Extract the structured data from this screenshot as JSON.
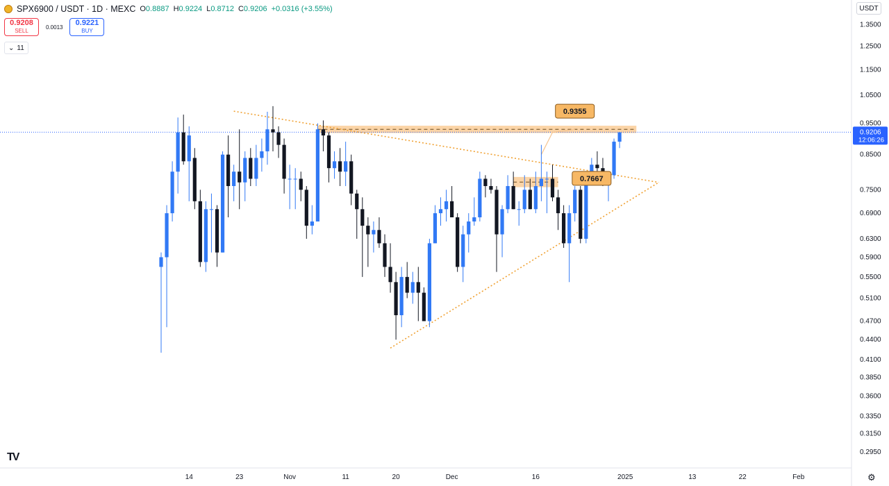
{
  "header": {
    "symbol": "SPX6900 / USDT · 1D · MEXC",
    "o_key": "O",
    "o_val": "0.8887",
    "h_key": "H",
    "h_val": "0.9224",
    "l_key": "L",
    "l_val": "0.8712",
    "c_key": "C",
    "c_val": "0.9206",
    "change": "+0.0316 (+3.55%)"
  },
  "trade": {
    "sell_price": "0.9208",
    "sell_label": "SELL",
    "spread": "0.0013",
    "buy_price": "0.9221",
    "buy_label": "BUY"
  },
  "indicators_toggle": {
    "count": "11",
    "chevron_icon": "chevron-down-icon"
  },
  "currency": "USDT",
  "settings_icon": "gear-icon",
  "logo_text": "TV",
  "colors": {
    "up": "#3179f5",
    "down": "#131722",
    "zone": "#f9c58a",
    "trend": "#f0a030",
    "price_line": "#2962ff"
  },
  "chart_data": {
    "type": "candlestick",
    "scale": "log",
    "ylim": [
      0.285,
      1.375
    ],
    "yticks": [
      "1.3500",
      "1.2500",
      "1.1500",
      "1.0500",
      "0.9500",
      "0.8500",
      "0.7500",
      "0.6900",
      "0.6300",
      "0.5900",
      "0.5500",
      "0.5100",
      "0.4700",
      "0.4400",
      "0.4100",
      "0.3850",
      "0.3600",
      "0.3350",
      "0.3150",
      "0.2950"
    ],
    "xticks": [
      {
        "label": "14",
        "index": 5
      },
      {
        "label": "23",
        "index": 14
      },
      {
        "label": "Nov",
        "index": 23
      },
      {
        "label": "11",
        "index": 33
      },
      {
        "label": "20",
        "index": 42
      },
      {
        "label": "Dec",
        "index": 52
      },
      {
        "label": "16",
        "index": 67
      },
      {
        "label": "2025",
        "index": 83
      },
      {
        "label": "13",
        "index": 95
      },
      {
        "label": "22",
        "index": 104
      },
      {
        "label": "Feb",
        "index": 114
      }
    ],
    "candles": [
      {
        "o": 0.57,
        "h": 0.6,
        "l": 0.42,
        "c": 0.59
      },
      {
        "o": 0.59,
        "h": 0.71,
        "l": 0.46,
        "c": 0.69
      },
      {
        "o": 0.69,
        "h": 0.83,
        "l": 0.67,
        "c": 0.8
      },
      {
        "o": 0.8,
        "h": 0.97,
        "l": 0.74,
        "c": 0.92
      },
      {
        "o": 0.92,
        "h": 0.98,
        "l": 0.82,
        "c": 0.83
      },
      {
        "o": 0.83,
        "h": 0.94,
        "l": 0.72,
        "c": 0.91
      },
      {
        "o": 0.84,
        "h": 0.87,
        "l": 0.7,
        "c": 0.72
      },
      {
        "o": 0.72,
        "h": 0.75,
        "l": 0.57,
        "c": 0.58
      },
      {
        "o": 0.58,
        "h": 0.72,
        "l": 0.56,
        "c": 0.7
      },
      {
        "o": 0.7,
        "h": 0.74,
        "l": 0.6,
        "c": 0.7
      },
      {
        "o": 0.7,
        "h": 0.71,
        "l": 0.57,
        "c": 0.6
      },
      {
        "o": 0.6,
        "h": 0.86,
        "l": 0.6,
        "c": 0.85
      },
      {
        "o": 0.85,
        "h": 0.91,
        "l": 0.68,
        "c": 0.76
      },
      {
        "o": 0.76,
        "h": 0.82,
        "l": 0.72,
        "c": 0.8
      },
      {
        "o": 0.8,
        "h": 0.93,
        "l": 0.7,
        "c": 0.77
      },
      {
        "o": 0.77,
        "h": 0.86,
        "l": 0.72,
        "c": 0.84
      },
      {
        "o": 0.84,
        "h": 0.87,
        "l": 0.76,
        "c": 0.78
      },
      {
        "o": 0.78,
        "h": 0.88,
        "l": 0.76,
        "c": 0.84
      },
      {
        "o": 0.84,
        "h": 0.9,
        "l": 0.8,
        "c": 0.86
      },
      {
        "o": 0.86,
        "h": 0.99,
        "l": 0.82,
        "c": 0.93
      },
      {
        "o": 0.93,
        "h": 1.01,
        "l": 0.86,
        "c": 0.92
      },
      {
        "o": 0.92,
        "h": 0.94,
        "l": 0.84,
        "c": 0.88
      },
      {
        "o": 0.88,
        "h": 0.9,
        "l": 0.74,
        "c": 0.78
      },
      {
        "o": 0.78,
        "h": 0.82,
        "l": 0.7,
        "c": 0.78
      },
      {
        "o": 0.78,
        "h": 0.81,
        "l": 0.7,
        "c": 0.78
      },
      {
        "o": 0.78,
        "h": 0.8,
        "l": 0.72,
        "c": 0.75
      },
      {
        "o": 0.75,
        "h": 0.76,
        "l": 0.63,
        "c": 0.66
      },
      {
        "o": 0.66,
        "h": 0.71,
        "l": 0.64,
        "c": 0.67
      },
      {
        "o": 0.67,
        "h": 0.95,
        "l": 0.67,
        "c": 0.93
      },
      {
        "o": 0.93,
        "h": 0.96,
        "l": 0.86,
        "c": 0.91
      },
      {
        "o": 0.91,
        "h": 0.92,
        "l": 0.77,
        "c": 0.81
      },
      {
        "o": 0.81,
        "h": 0.86,
        "l": 0.78,
        "c": 0.83
      },
      {
        "o": 0.83,
        "h": 0.87,
        "l": 0.76,
        "c": 0.8
      },
      {
        "o": 0.8,
        "h": 0.89,
        "l": 0.76,
        "c": 0.83
      },
      {
        "o": 0.83,
        "h": 0.85,
        "l": 0.71,
        "c": 0.74
      },
      {
        "o": 0.74,
        "h": 0.75,
        "l": 0.63,
        "c": 0.7
      },
      {
        "o": 0.7,
        "h": 0.73,
        "l": 0.55,
        "c": 0.66
      },
      {
        "o": 0.66,
        "h": 0.68,
        "l": 0.57,
        "c": 0.64
      },
      {
        "o": 0.64,
        "h": 0.67,
        "l": 0.6,
        "c": 0.65
      },
      {
        "o": 0.65,
        "h": 0.68,
        "l": 0.61,
        "c": 0.62
      },
      {
        "o": 0.62,
        "h": 0.64,
        "l": 0.55,
        "c": 0.57
      },
      {
        "o": 0.57,
        "h": 0.62,
        "l": 0.52,
        "c": 0.54
      },
      {
        "o": 0.54,
        "h": 0.56,
        "l": 0.44,
        "c": 0.48
      },
      {
        "o": 0.48,
        "h": 0.57,
        "l": 0.46,
        "c": 0.55
      },
      {
        "o": 0.55,
        "h": 0.58,
        "l": 0.51,
        "c": 0.52
      },
      {
        "o": 0.52,
        "h": 0.56,
        "l": 0.5,
        "c": 0.54
      },
      {
        "o": 0.54,
        "h": 0.57,
        "l": 0.47,
        "c": 0.52
      },
      {
        "o": 0.52,
        "h": 0.53,
        "l": 0.47,
        "c": 0.47
      },
      {
        "o": 0.47,
        "h": 0.63,
        "l": 0.46,
        "c": 0.62
      },
      {
        "o": 0.62,
        "h": 0.71,
        "l": 0.62,
        "c": 0.69
      },
      {
        "o": 0.69,
        "h": 0.73,
        "l": 0.66,
        "c": 0.7
      },
      {
        "o": 0.7,
        "h": 0.75,
        "l": 0.67,
        "c": 0.72
      },
      {
        "o": 0.72,
        "h": 0.76,
        "l": 0.68,
        "c": 0.68
      },
      {
        "o": 0.68,
        "h": 0.69,
        "l": 0.56,
        "c": 0.57
      },
      {
        "o": 0.57,
        "h": 0.66,
        "l": 0.54,
        "c": 0.64
      },
      {
        "o": 0.64,
        "h": 0.69,
        "l": 0.6,
        "c": 0.67
      },
      {
        "o": 0.67,
        "h": 0.73,
        "l": 0.66,
        "c": 0.68
      },
      {
        "o": 0.68,
        "h": 0.8,
        "l": 0.67,
        "c": 0.78
      },
      {
        "o": 0.78,
        "h": 0.79,
        "l": 0.73,
        "c": 0.76
      },
      {
        "o": 0.76,
        "h": 0.78,
        "l": 0.74,
        "c": 0.75
      },
      {
        "o": 0.75,
        "h": 0.76,
        "l": 0.56,
        "c": 0.64
      },
      {
        "o": 0.64,
        "h": 0.71,
        "l": 0.59,
        "c": 0.7
      },
      {
        "o": 0.7,
        "h": 0.79,
        "l": 0.69,
        "c": 0.76
      },
      {
        "o": 0.76,
        "h": 0.8,
        "l": 0.7,
        "c": 0.7
      },
      {
        "o": 0.7,
        "h": 0.72,
        "l": 0.66,
        "c": 0.7
      },
      {
        "o": 0.7,
        "h": 0.79,
        "l": 0.69,
        "c": 0.75
      },
      {
        "o": 0.75,
        "h": 0.78,
        "l": 0.7,
        "c": 0.7
      },
      {
        "o": 0.7,
        "h": 0.8,
        "l": 0.69,
        "c": 0.76
      },
      {
        "o": 0.76,
        "h": 0.88,
        "l": 0.72,
        "c": 0.78
      },
      {
        "o": 0.78,
        "h": 0.8,
        "l": 0.69,
        "c": 0.78
      },
      {
        "o": 0.78,
        "h": 0.82,
        "l": 0.72,
        "c": 0.73
      },
      {
        "o": 0.73,
        "h": 0.75,
        "l": 0.65,
        "c": 0.69
      },
      {
        "o": 0.69,
        "h": 0.71,
        "l": 0.61,
        "c": 0.62
      },
      {
        "o": 0.62,
        "h": 0.71,
        "l": 0.54,
        "c": 0.69
      },
      {
        "o": 0.69,
        "h": 0.76,
        "l": 0.67,
        "c": 0.75
      },
      {
        "o": 0.75,
        "h": 0.76,
        "l": 0.62,
        "c": 0.63
      },
      {
        "o": 0.63,
        "h": 0.8,
        "l": 0.62,
        "c": 0.79
      },
      {
        "o": 0.79,
        "h": 0.84,
        "l": 0.78,
        "c": 0.82
      },
      {
        "o": 0.82,
        "h": 0.86,
        "l": 0.78,
        "c": 0.81
      },
      {
        "o": 0.81,
        "h": 0.84,
        "l": 0.76,
        "c": 0.77
      },
      {
        "o": 0.77,
        "h": 0.8,
        "l": 0.72,
        "c": 0.78
      },
      {
        "o": 0.79,
        "h": 0.9,
        "l": 0.78,
        "c": 0.89
      },
      {
        "o": 0.89,
        "h": 0.92,
        "l": 0.87,
        "c": 0.92
      }
    ],
    "last_price": "0.9206",
    "countdown": "12:06:26",
    "zones": [
      {
        "y_top": 0.942,
        "y_bottom": 0.918,
        "from": 28,
        "to": 85,
        "label": "0.9355",
        "label_at": 74
      },
      {
        "y_top": 0.785,
        "y_bottom": 0.757,
        "from": 63,
        "to": 71,
        "label": "0.7667",
        "label_at": 77
      }
    ],
    "trendlines": [
      {
        "from": [
          13,
          0.992
        ],
        "to": [
          89,
          0.77
        ]
      },
      {
        "from": [
          41,
          0.427
        ],
        "to": [
          89,
          0.77
        ]
      }
    ],
    "projection": [
      [
        68,
        0.85
      ],
      [
        70,
        0.92
      ],
      [
        74,
        0.93
      ]
    ]
  }
}
